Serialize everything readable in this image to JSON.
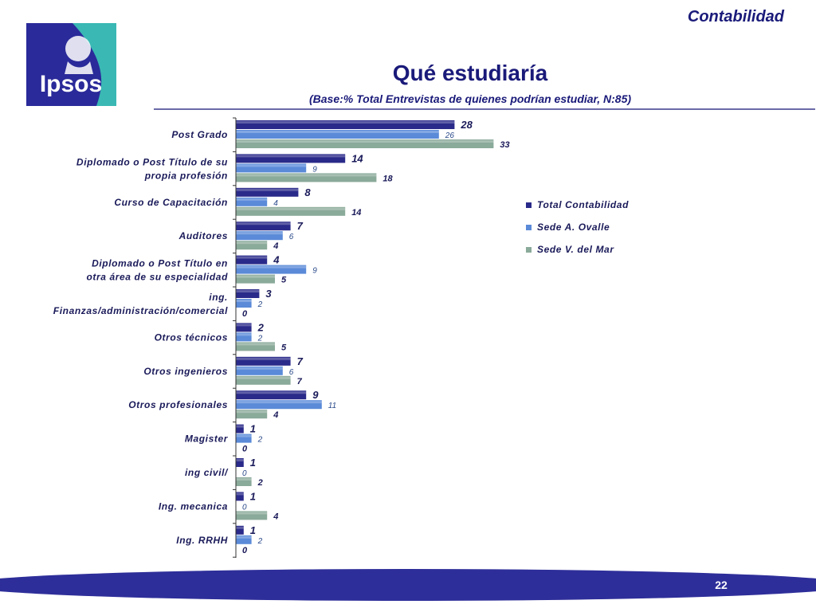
{
  "header": {
    "section": "Contabilidad",
    "logo_text": "Ipsos"
  },
  "title": "Qué estudiaría",
  "subtitle": "(Base:% Total Entrevistas de quienes podrían estudiar, N:85)",
  "footer": {
    "page_number": "22"
  },
  "colors": {
    "navy": "#1a1a7a",
    "logo_blue": "#2a2a9a",
    "logo_teal": "#3ab8b4",
    "series_total": "#2a2a8a",
    "series_ovalle": "#5a8ad8",
    "series_mar": "#8aaa9a",
    "footer_band": "#2e2e9a"
  },
  "chart_data": {
    "type": "bar",
    "orientation": "horizontal",
    "categories": [
      [
        "Post Grado"
      ],
      [
        "Diplomado o Post Título de su",
        "propia profesión"
      ],
      [
        "Curso de Capacitación"
      ],
      [
        "Auditores"
      ],
      [
        "Diplomado o Post Título en",
        "otra área de su especialidad"
      ],
      [
        "ing.",
        "Finanzas/administración/comercial"
      ],
      [
        "Otros técnicos"
      ],
      [
        "Otros ingenieros"
      ],
      [
        "Otros profesionales"
      ],
      [
        "Magister"
      ],
      [
        "ing civil/"
      ],
      [
        "Ing. mecanica"
      ],
      [
        "Ing. RRHH"
      ]
    ],
    "series": [
      {
        "name": "Total Contabilidad",
        "values": [
          28,
          14,
          8,
          7,
          4,
          3,
          2,
          7,
          9,
          1,
          1,
          1,
          1
        ]
      },
      {
        "name": "Sede A. Ovalle",
        "values": [
          26,
          9,
          4,
          6,
          9,
          2,
          2,
          6,
          11,
          2,
          0,
          0,
          2
        ]
      },
      {
        "name": "Sede V. del Mar",
        "values": [
          33,
          18,
          14,
          4,
          5,
          0,
          5,
          7,
          4,
          0,
          2,
          4,
          0
        ]
      }
    ],
    "xlim": [
      0,
      33
    ],
    "grid": false,
    "legend_position": "right"
  }
}
